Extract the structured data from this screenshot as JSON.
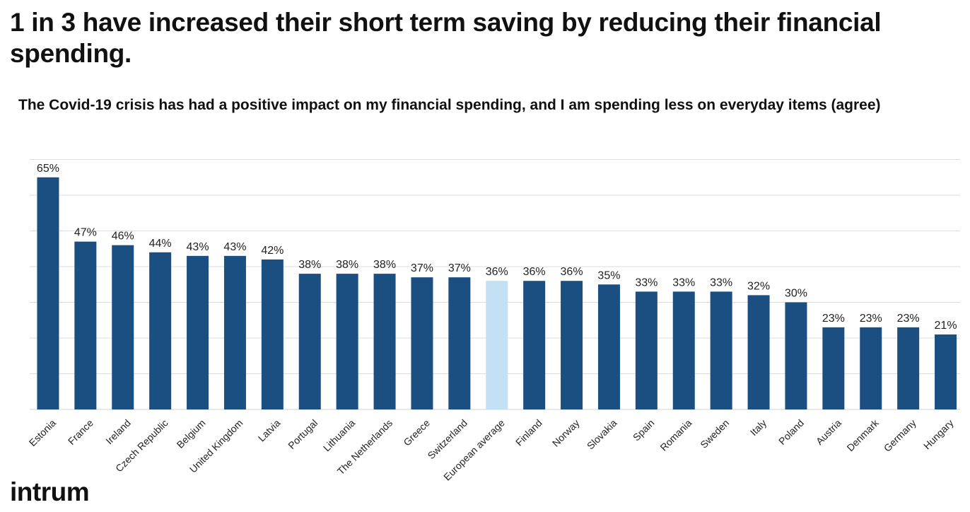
{
  "headline": "1 in 3 have increased their short term saving by reducing their financial spending.",
  "brand": {
    "logo_text": "intrum"
  },
  "chart_data": {
    "type": "bar",
    "title": "The Covid-19 crisis has had a positive impact on my financial spending, and I am spending less on everyday items (agree)",
    "xlabel": "",
    "ylabel": "",
    "ylim": [
      0,
      70
    ],
    "grid": true,
    "unit": "%",
    "categories": [
      "Estonia",
      "France",
      "Ireland",
      "Czech Republic",
      "Belgium",
      "United Kingdom",
      "Latvia",
      "Portugal",
      "Lithuania",
      "The Netherlands",
      "Greece",
      "Switzerland",
      "European average",
      "Finland",
      "Norway",
      "Slovakia",
      "Spain",
      "Romania",
      "Sweden",
      "Italy",
      "Poland",
      "Austria",
      "Denmark",
      "Germany",
      "Hungary"
    ],
    "values": [
      65,
      47,
      46,
      44,
      43,
      43,
      42,
      38,
      38,
      38,
      37,
      37,
      36,
      36,
      36,
      35,
      33,
      33,
      33,
      32,
      30,
      23,
      23,
      23,
      21
    ],
    "data_labels": [
      "65%",
      "47%",
      "46%",
      "44%",
      "43%",
      "43%",
      "42%",
      "38%",
      "38%",
      "38%",
      "37%",
      "37%",
      "36%",
      "36%",
      "36%",
      "35%",
      "33%",
      "33%",
      "33%",
      "32%",
      "30%",
      "23%",
      "23%",
      "23%",
      "21%"
    ],
    "highlight_category": "European average",
    "colors": {
      "bar": "#1b4f82",
      "highlight": "#c4e0f5",
      "grid": "#dcdcdc"
    }
  }
}
